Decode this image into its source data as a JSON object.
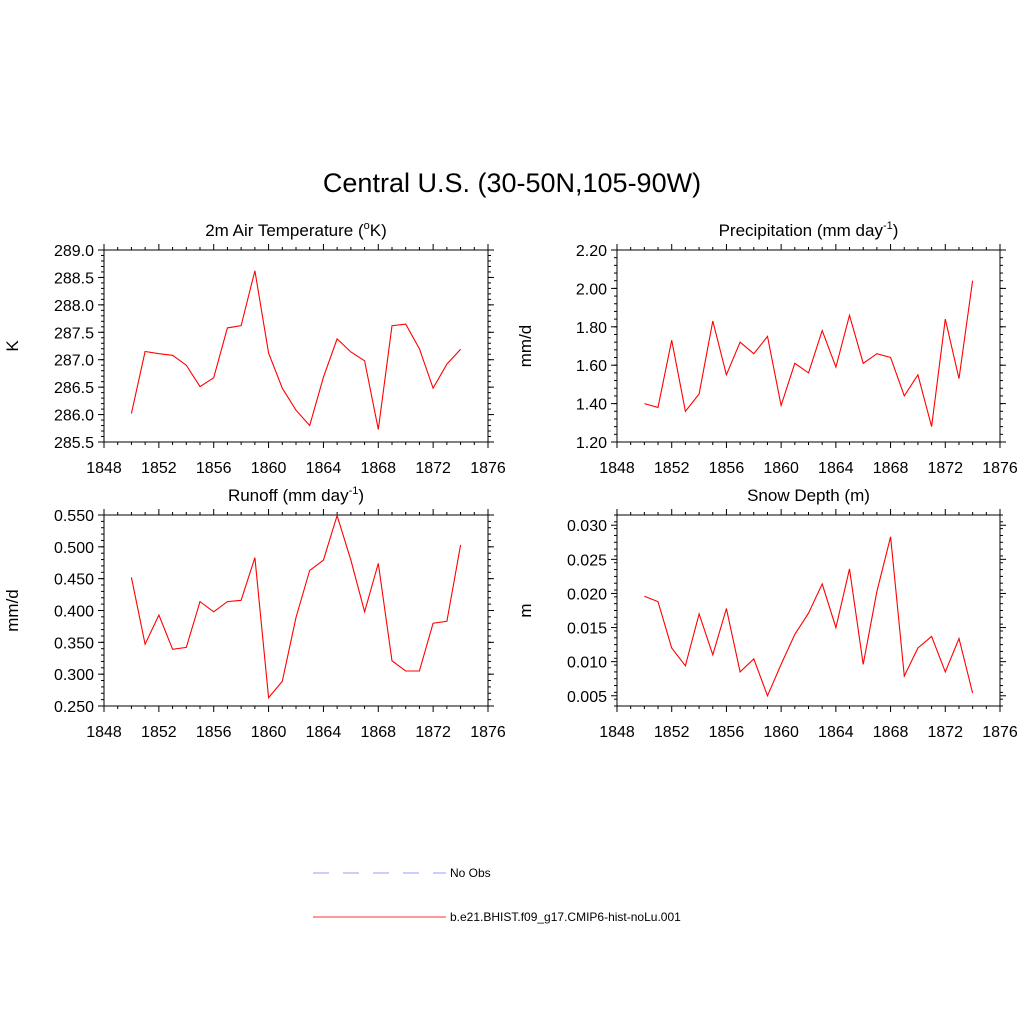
{
  "title": "Central U.S. (30-50N,105-90W)",
  "legend": [
    {
      "label": "No Obs",
      "color": "#aab0ff",
      "dash": true
    },
    {
      "label": "b.e21.BHIST.f09_g17.CMIP6-hist-noLu.001",
      "color": "#ff3333",
      "dash": false
    }
  ],
  "chart_data": [
    {
      "type": "line",
      "title": "2m Air Temperature (",
      "title_sup": "o",
      "title_after": "K)",
      "ylabel": "K",
      "xlim": [
        1848,
        1876
      ],
      "ylim": [
        285.5,
        289.0
      ],
      "xticks": [
        "1848",
        "1852",
        "1856",
        "1860",
        "1864",
        "1868",
        "1872",
        "1876"
      ],
      "yticks": [
        "285.5",
        "286.0",
        "286.5",
        "287.0",
        "287.5",
        "288.0",
        "288.5",
        "289.0"
      ],
      "series": [
        {
          "color": "#ff0000",
          "x": [
            1850,
            1851,
            1852,
            1853,
            1854,
            1855,
            1856,
            1857,
            1858,
            1859,
            1860,
            1861,
            1862,
            1863,
            1864,
            1865,
            1866,
            1867,
            1868,
            1869,
            1870,
            1871,
            1872,
            1873,
            1874
          ],
          "y": [
            286.02,
            287.15,
            287.11,
            287.08,
            286.9,
            286.51,
            286.67,
            287.58,
            287.62,
            288.62,
            287.12,
            286.48,
            286.08,
            285.8,
            286.68,
            287.38,
            287.14,
            286.98,
            285.73,
            287.62,
            287.65,
            287.2,
            286.48,
            286.92,
            287.19
          ]
        }
      ]
    },
    {
      "type": "line",
      "title": "Precipitation (mm day",
      "title_sup": "-1",
      "title_after": ")",
      "ylabel": "mm/d",
      "xlim": [
        1848,
        1876
      ],
      "ylim": [
        1.2,
        2.2
      ],
      "xticks": [
        "1848",
        "1852",
        "1856",
        "1860",
        "1864",
        "1868",
        "1872",
        "1876"
      ],
      "yticks": [
        "1.20",
        "1.40",
        "1.60",
        "1.80",
        "2.00",
        "2.20"
      ],
      "series": [
        {
          "color": "#ff0000",
          "x": [
            1850,
            1851,
            1852,
            1853,
            1854,
            1855,
            1856,
            1857,
            1858,
            1859,
            1860,
            1861,
            1862,
            1863,
            1864,
            1865,
            1866,
            1867,
            1868,
            1869,
            1870,
            1871,
            1872,
            1873,
            1874
          ],
          "y": [
            1.4,
            1.38,
            1.73,
            1.36,
            1.45,
            1.83,
            1.55,
            1.72,
            1.66,
            1.75,
            1.39,
            1.61,
            1.56,
            1.78,
            1.59,
            1.86,
            1.61,
            1.66,
            1.64,
            1.44,
            1.55,
            1.28,
            1.84,
            1.53,
            2.04
          ]
        }
      ]
    },
    {
      "type": "line",
      "title": "Runoff (mm day",
      "title_sup": "-1",
      "title_after": ")",
      "ylabel": "mm/d",
      "xlim": [
        1848,
        1876
      ],
      "ylim": [
        0.25,
        0.55
      ],
      "xticks": [
        "1848",
        "1852",
        "1856",
        "1860",
        "1864",
        "1868",
        "1872",
        "1876"
      ],
      "yticks": [
        "0.250",
        "0.300",
        "0.350",
        "0.400",
        "0.450",
        "0.500",
        "0.550"
      ],
      "series": [
        {
          "color": "#ff0000",
          "x": [
            1850,
            1851,
            1852,
            1853,
            1854,
            1855,
            1856,
            1857,
            1858,
            1859,
            1860,
            1861,
            1862,
            1863,
            1864,
            1865,
            1866,
            1867,
            1868,
            1869,
            1870,
            1871,
            1872,
            1873,
            1874
          ],
          "y": [
            0.452,
            0.347,
            0.393,
            0.339,
            0.342,
            0.414,
            0.398,
            0.414,
            0.416,
            0.483,
            0.263,
            0.289,
            0.389,
            0.463,
            0.479,
            0.549,
            0.479,
            0.398,
            0.474,
            0.321,
            0.305,
            0.305,
            0.38,
            0.383,
            0.503
          ]
        }
      ]
    },
    {
      "type": "line",
      "title": "Snow Depth (m)",
      "title_sup": "",
      "title_after": "",
      "ylabel": "m",
      "xlim": [
        1848,
        1876
      ],
      "ylim": [
        0.0035,
        0.0315
      ],
      "xticks": [
        "1848",
        "1852",
        "1856",
        "1860",
        "1864",
        "1868",
        "1872",
        "1876"
      ],
      "yticks": [
        "0.005",
        "0.010",
        "0.015",
        "0.020",
        "0.025",
        "0.030"
      ],
      "ytick_values": [
        0.005,
        0.01,
        0.015,
        0.02,
        0.025,
        0.03
      ],
      "series": [
        {
          "color": "#ff0000",
          "x": [
            1850,
            1851,
            1852,
            1853,
            1854,
            1855,
            1856,
            1857,
            1858,
            1859,
            1860,
            1861,
            1862,
            1863,
            1864,
            1865,
            1866,
            1867,
            1868,
            1869,
            1870,
            1871,
            1872,
            1873,
            1874
          ],
          "y": [
            0.0196,
            0.0188,
            0.012,
            0.0094,
            0.017,
            0.011,
            0.0178,
            0.0085,
            0.0104,
            0.005,
            0.0096,
            0.014,
            0.0171,
            0.0214,
            0.015,
            0.0236,
            0.0096,
            0.0203,
            0.0283,
            0.0079,
            0.012,
            0.0137,
            0.0085,
            0.0134,
            0.0054
          ]
        }
      ]
    }
  ]
}
